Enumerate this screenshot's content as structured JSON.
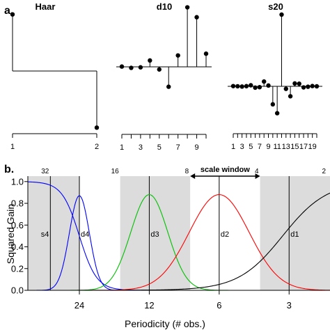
{
  "panel_a": {
    "label": "a.",
    "filters": [
      {
        "name": "Haar",
        "values": [
          0.7071,
          -0.7071
        ],
        "ticks": [
          "1",
          "2"
        ]
      },
      {
        "name": "d10",
        "values": [
          0.0033,
          -0.0126,
          -0.0062,
          0.0776,
          -0.0322,
          -0.2423,
          0.1384,
          0.7243,
          0.6038,
          0.1601
        ],
        "ticks": [
          "1",
          "3",
          "5",
          "7",
          "9"
        ]
      },
      {
        "name": "s20",
        "values": [
          0.0026,
          0.0008,
          -0.0025,
          0.002,
          0.0118,
          -0.0148,
          -0.0097,
          0.0542,
          0.009,
          -0.2035,
          -0.304,
          0.8112,
          -0.0285,
          -0.1125,
          0.0325,
          0.0295,
          -0.012,
          -0.0044,
          0.0033,
          0.0003
        ],
        "ticks": [
          "1",
          "3",
          "5",
          "7",
          "9",
          "11",
          "13",
          "15",
          "17",
          "19"
        ]
      }
    ]
  },
  "panel_b": {
    "label": "b.",
    "chart_data": {
      "type": "line",
      "xlabel": "Periodicity (# obs.)",
      "ylabel": "Squared Gain",
      "x_scale": "log",
      "xlim": [
        40,
        2
      ],
      "ylim": [
        0,
        1.05
      ],
      "x_ticks": [
        24,
        12,
        6,
        3
      ],
      "y_ticks": [
        0.0,
        0.2,
        0.4,
        0.6,
        0.8,
        1.0
      ],
      "y_tick_labels": [
        "0.0",
        "0.2",
        "0.4",
        "0.6",
        "0.8",
        "1.0"
      ],
      "top_ticks": [
        32,
        16,
        8,
        4,
        2
      ],
      "shaded_bands": [
        {
          "name": "s4",
          "from": 40,
          "to": 32
        },
        {
          "name": "d3",
          "from": 16,
          "to": 8
        },
        {
          "name": "d1",
          "from": 4,
          "to": 2
        }
      ],
      "band_lines": [
        {
          "name": "s4",
          "at": 32
        },
        {
          "name": "d4",
          "at": 24
        },
        {
          "name": "d3",
          "at": 12
        },
        {
          "name": "d2",
          "at": 6
        },
        {
          "name": "d1",
          "at": 3
        }
      ],
      "scale_window": {
        "label": "scale window",
        "from": 8,
        "to": 4
      },
      "series": [
        {
          "name": "s4",
          "color": "#0000ff",
          "center": 40,
          "peak": 1.0,
          "kind": "low"
        },
        {
          "name": "d4",
          "color": "#0000ff",
          "center": 24,
          "peak": 0.87,
          "kind": "band"
        },
        {
          "name": "d3",
          "color": "#00c000",
          "center": 12,
          "peak": 0.88,
          "kind": "band"
        },
        {
          "name": "d2",
          "color": "#ff0000",
          "center": 6,
          "peak": 0.88,
          "kind": "band"
        },
        {
          "name": "d1",
          "color": "#000000",
          "center": 2,
          "peak": 1.0,
          "kind": "high"
        }
      ]
    }
  }
}
